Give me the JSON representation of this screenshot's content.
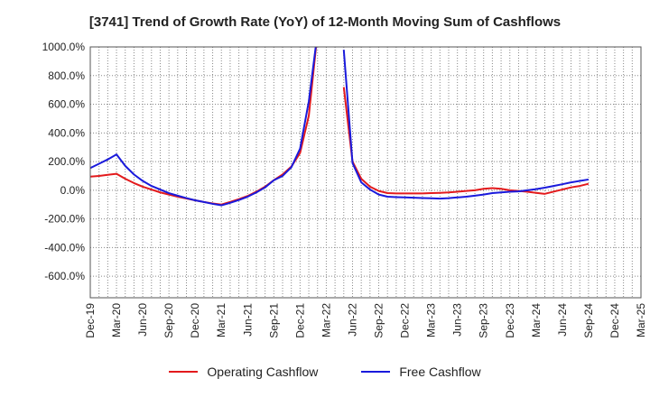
{
  "chart_data": {
    "type": "line",
    "title": "[3741]  Trend of Growth Rate (YoY) of 12-Month Moving Sum of Cashflows",
    "xlabel": "",
    "ylabel": "",
    "ylim": [
      -750,
      1000
    ],
    "y_ticks": [
      1000,
      800,
      600,
      400,
      200,
      0,
      -200,
      -400,
      -600
    ],
    "y_tick_labels": [
      "1000.0%",
      "800.0%",
      "600.0%",
      "400.0%",
      "200.0%",
      "0.0%",
      "-200.0%",
      "-400.0%",
      "-600.0%"
    ],
    "categories": [
      "Dec-19",
      "Jan-20",
      "Feb-20",
      "Mar-20",
      "Apr-20",
      "May-20",
      "Jun-20",
      "Jul-20",
      "Aug-20",
      "Sep-20",
      "Oct-20",
      "Nov-20",
      "Dec-20",
      "Jan-21",
      "Feb-21",
      "Mar-21",
      "Apr-21",
      "May-21",
      "Jun-21",
      "Jul-21",
      "Aug-21",
      "Sep-21",
      "Oct-21",
      "Nov-21",
      "Dec-21",
      "Jan-22",
      "Feb-22",
      "Mar-22",
      "Apr-22",
      "May-22",
      "Jun-22",
      "Jul-22",
      "Aug-22",
      "Sep-22",
      "Oct-22",
      "Nov-22",
      "Dec-22",
      "Jan-23",
      "Feb-23",
      "Mar-23",
      "Apr-23",
      "May-23",
      "Jun-23",
      "Jul-23",
      "Aug-23",
      "Sep-23",
      "Oct-23",
      "Nov-23",
      "Dec-23",
      "Jan-24",
      "Feb-24",
      "Mar-24",
      "Apr-24",
      "May-24",
      "Jun-24",
      "Jul-24",
      "Aug-24",
      "Sep-24",
      "Oct-24",
      "Nov-24",
      "Dec-24",
      "Jan-25",
      "Feb-25",
      "Mar-25"
    ],
    "x_tick_labels": [
      "Dec-19",
      "Mar-20",
      "Jun-20",
      "Sep-20",
      "Dec-20",
      "Mar-21",
      "Jun-21",
      "Sep-21",
      "Dec-21",
      "Mar-22",
      "Jun-22",
      "Sep-22",
      "Dec-22",
      "Mar-23",
      "Jun-23",
      "Sep-23",
      "Dec-23",
      "Mar-24",
      "Jun-24",
      "Sep-24",
      "Dec-24",
      "Mar-25"
    ],
    "grid": true,
    "legend_position": "bottom",
    "series": [
      {
        "name": "Operating Cashflow",
        "color": "#e31a1c",
        "values": [
          95,
          100,
          108,
          115,
          80,
          50,
          25,
          5,
          -15,
          -30,
          -45,
          -58,
          -70,
          -82,
          -92,
          -100,
          -82,
          -62,
          -40,
          -10,
          25,
          70,
          110,
          165,
          260,
          520,
          1100,
          null,
          null,
          720,
          200,
          80,
          25,
          -5,
          -20,
          -22,
          -22,
          -22,
          -22,
          -20,
          -18,
          -15,
          -10,
          -5,
          0,
          10,
          15,
          10,
          0,
          -5,
          -10,
          -18,
          -25,
          -10,
          5,
          20,
          30,
          45,
          null,
          null,
          null,
          null,
          null,
          null
        ]
      },
      {
        "name": "Free Cashflow",
        "color": "#1a1adc",
        "values": [
          155,
          185,
          215,
          250,
          170,
          110,
          65,
          30,
          5,
          -20,
          -38,
          -55,
          -70,
          -82,
          -95,
          -105,
          -88,
          -68,
          -45,
          -15,
          20,
          70,
          100,
          160,
          290,
          620,
          1100,
          null,
          null,
          980,
          190,
          55,
          5,
          -30,
          -45,
          -48,
          -50,
          -52,
          -54,
          -56,
          -58,
          -55,
          -50,
          -45,
          -38,
          -30,
          -20,
          -15,
          -10,
          -8,
          0,
          8,
          18,
          30,
          42,
          55,
          65,
          75,
          null,
          null,
          null,
          null,
          null,
          null
        ]
      }
    ]
  }
}
